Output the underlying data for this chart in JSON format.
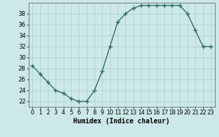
{
  "x": [
    0,
    1,
    2,
    3,
    4,
    5,
    6,
    7,
    8,
    9,
    10,
    11,
    12,
    13,
    14,
    15,
    16,
    17,
    18,
    19,
    20,
    21,
    22,
    23
  ],
  "y": [
    28.5,
    27,
    25.5,
    24,
    23.5,
    22.5,
    22,
    22,
    24,
    27.5,
    32,
    36.5,
    38,
    39,
    39.5,
    39.5,
    39.5,
    39.5,
    39.5,
    39.5,
    38,
    35,
    32,
    32
  ],
  "xlabel": "Humidex (Indice chaleur)",
  "ylim": [
    21,
    40
  ],
  "xlim": [
    -0.5,
    23.5
  ],
  "yticks": [
    22,
    24,
    26,
    28,
    30,
    32,
    34,
    36,
    38
  ],
  "xticks": [
    0,
    1,
    2,
    3,
    4,
    5,
    6,
    7,
    8,
    9,
    10,
    11,
    12,
    13,
    14,
    15,
    16,
    17,
    18,
    19,
    20,
    21,
    22,
    23
  ],
  "line_color": "#2e6b5e",
  "marker": "+",
  "marker_size": 4,
  "line_width": 1.0,
  "bg_color": "#cce8e8",
  "grid_color": "#aacfcf",
  "xlabel_fontsize": 7,
  "tick_fontsize": 6
}
